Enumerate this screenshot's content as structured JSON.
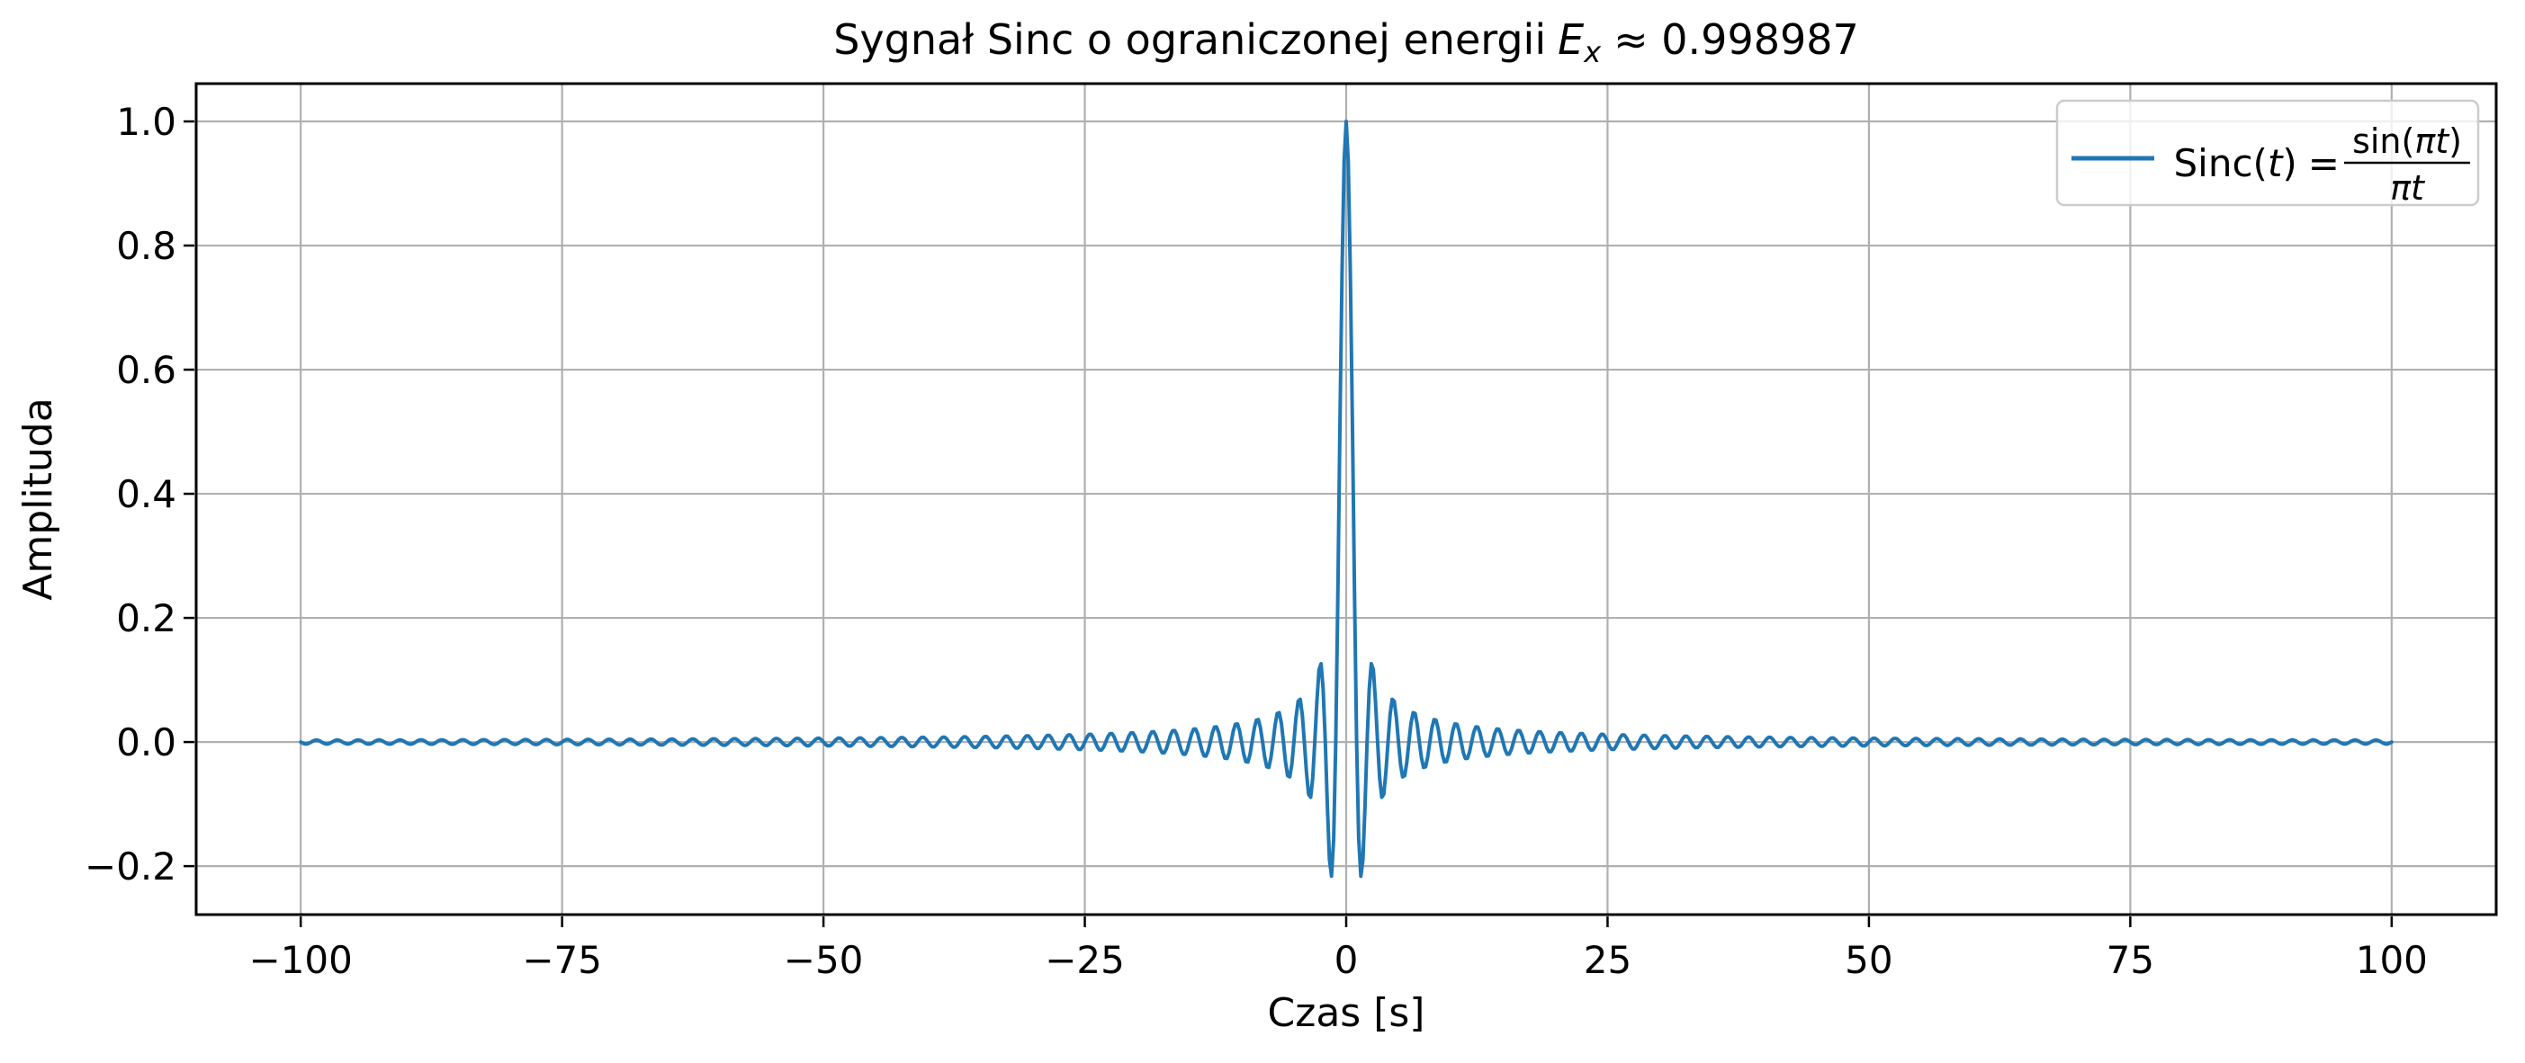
{
  "title": {
    "prefix": "Sygnał Sinc o ograniczonej energii",
    "energy_symbol": "E",
    "energy_sub": "x",
    "approx": "≈ 0.998987"
  },
  "legend": {
    "series_color": "#1f77b4",
    "func_name": "Sinc(",
    "func_var": "t",
    "func_close": ")",
    "equals": "=",
    "numerator_fn": "sin(",
    "numerator_arg": "πt",
    "numerator_close": ")",
    "denominator": "πt"
  },
  "chart_data": {
    "type": "line",
    "title": "Sygnał Sinc o ograniczonej energii E_x ≈ 0.998987",
    "xlabel": "Czas [s]",
    "ylabel": "Amplituda",
    "xlim": [
      -110,
      110
    ],
    "ylim": [
      -0.2781,
      1.0609
    ],
    "x_ticks": [
      -100,
      -75,
      -50,
      -25,
      0,
      25,
      50,
      75,
      100
    ],
    "x_tick_labels": [
      "−100",
      "−75",
      "−50",
      "−25",
      "0",
      "25",
      "50",
      "75",
      "100"
    ],
    "y_ticks": [
      -0.2,
      0.0,
      0.2,
      0.4,
      0.6,
      0.8,
      1.0
    ],
    "y_tick_labels": [
      "−0.2",
      "0.0",
      "0.2",
      "0.4",
      "0.6",
      "0.8",
      "1.0"
    ],
    "grid": true,
    "grid_color": "#b0b0b0",
    "legend_position": "upper right",
    "energy_Ex": 0.998987,
    "series": [
      {
        "name": "Sinc(t) = sin(πt)/(πt)",
        "formula": "sin(pi*t)/(pi*t)",
        "x_min": -100,
        "x_max": 100,
        "num_points": 1001,
        "color": "#1f77b4",
        "line_width": 4,
        "peak_t": 0,
        "peak_value": 1.0,
        "min_value": -0.2172
      }
    ]
  }
}
